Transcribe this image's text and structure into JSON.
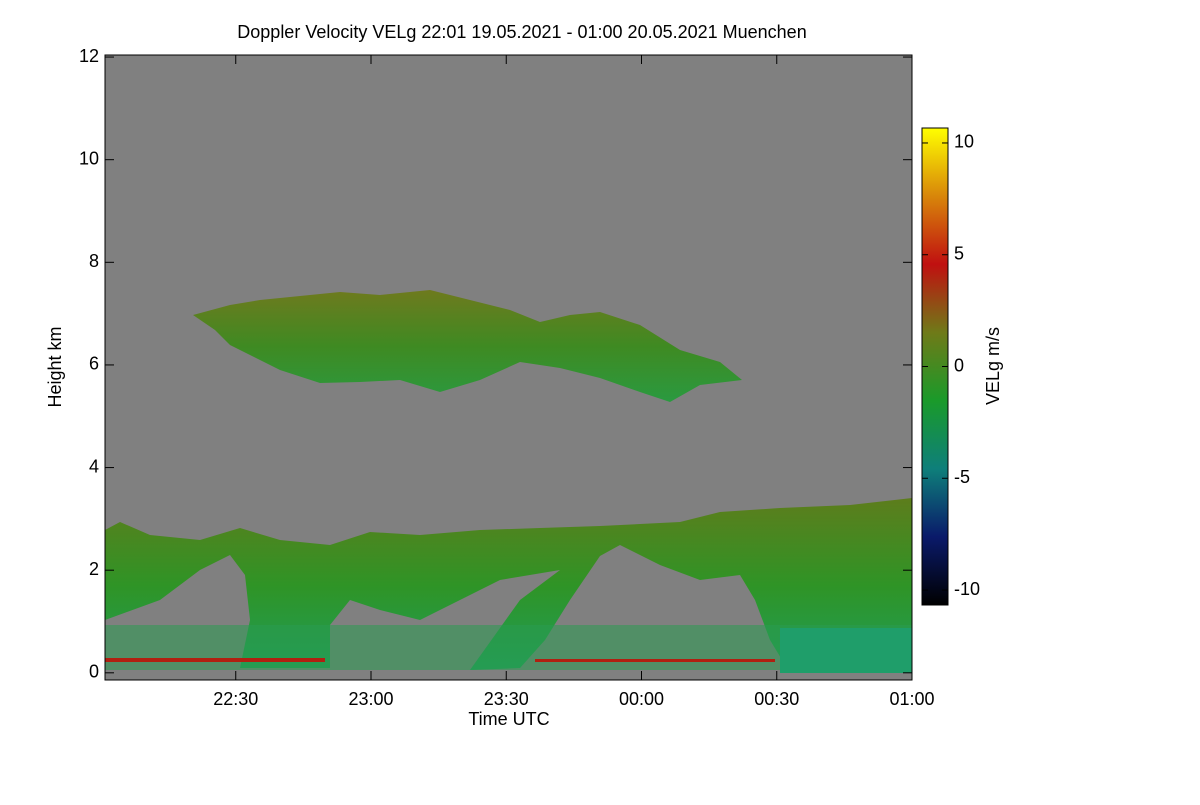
{
  "chart_data": {
    "type": "heatmap",
    "title": "Doppler Velocity VELg   22:01 19.05.2021 - 01:00 20.05.2021 Muenchen",
    "x_label": "Time UTC",
    "y_label": "Height km",
    "xlim": [
      1,
      180
    ],
    "xticks": [
      {
        "value": 30,
        "label": "22:30"
      },
      {
        "value": 60,
        "label": "23:00"
      },
      {
        "value": 90,
        "label": "23:30"
      },
      {
        "value": 120,
        "label": "00:00"
      },
      {
        "value": 150,
        "label": "00:30"
      },
      {
        "value": 180,
        "label": "01:00"
      }
    ],
    "ylim": [
      -0.14,
      12.04
    ],
    "yticks": [
      0,
      2,
      4,
      6,
      8,
      10,
      12
    ],
    "colorbar": {
      "label": "VELg m/s",
      "clim": [
        -10.67,
        10.67
      ],
      "ticks": [
        -10,
        -5,
        0,
        5,
        10
      ],
      "colormap": [
        "#000000",
        "#0a1a6a",
        "#0e7f7a",
        "#1a9a2a",
        "#6f7a18",
        "#c01010",
        "#d8860a",
        "#ffff00"
      ]
    },
    "background": "#808080"
  }
}
